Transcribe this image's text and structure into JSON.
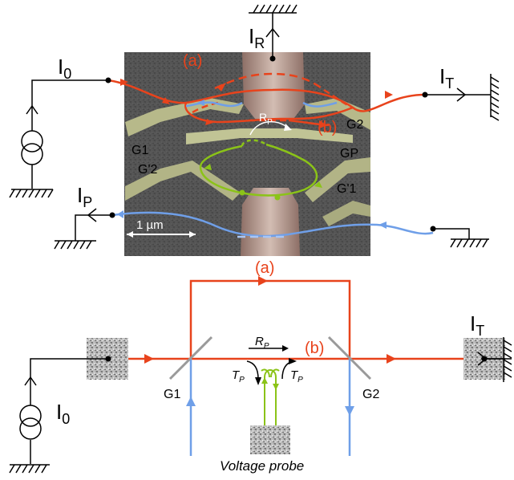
{
  "colors": {
    "red_path": "#e8431c",
    "blue_path": "#6f9fe8",
    "green_path": "#8bc318",
    "wire": "#000000",
    "gate": "#9a9a9a",
    "sem_bg": "#3b3b3b",
    "contact": "#a88a80",
    "gate_metal": "#b9b98c"
  },
  "icons": [
    "current-source-icon",
    "ground-icon",
    "ohmic-contact-icon",
    "beam-splitter-icon",
    "arrow-icon"
  ],
  "top": {
    "source_current": "I",
    "source_sub": "0",
    "reflected_current": "I",
    "reflected_sub": "R",
    "transmitted_current": "I",
    "transmitted_sub": "T",
    "probe_current": "I",
    "probe_sub": "P",
    "path_a": "(a)",
    "path_b": "(b)",
    "rp_main": "R",
    "rp_sub": "P",
    "gate_g1": "G1",
    "gate_g2": "G2",
    "gate_gp": "GP",
    "gate_g2p": "G'2",
    "gate_g1p": "G'1",
    "scale_bar": "1 µm"
  },
  "bottom": {
    "path_a": "(a)",
    "path_b": "(b)",
    "rp_main": "R",
    "rp_sub": "P",
    "tp_main": "T",
    "tp_sub": "P",
    "tp_right_main": "T",
    "tp_right_sub": "P",
    "gate_g1": "G1",
    "gate_g2": "G2",
    "source_current": "I",
    "source_sub": "0",
    "transmitted_current": "I",
    "transmitted_sub": "T",
    "voltage_probe": "Voltage probe"
  }
}
